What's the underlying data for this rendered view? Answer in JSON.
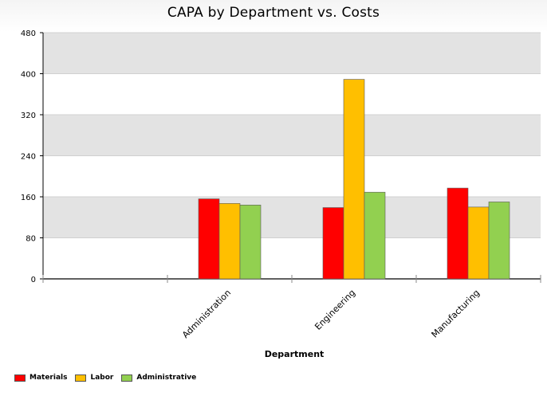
{
  "chart_data": {
    "type": "bar",
    "title": "CAPA by Department vs. Costs",
    "xlabel": "Department",
    "ylabel": "",
    "categories": [
      "",
      "Administration",
      "Engineering",
      "Manufacturing"
    ],
    "series": [
      {
        "name": "Materials",
        "color": "#ff0000",
        "values": [
          null,
          156,
          139,
          177
        ]
      },
      {
        "name": "Labor",
        "color": "#ffbf00",
        "values": [
          null,
          147,
          389,
          140
        ]
      },
      {
        "name": "Administrative",
        "color": "#92d050",
        "values": [
          null,
          144,
          169,
          150
        ]
      }
    ],
    "ylim": [
      0,
      480
    ],
    "yticks": [
      0,
      80,
      160,
      240,
      320,
      400,
      480
    ],
    "grid": true,
    "band_color": "#e3e3e3",
    "legend": "bottom-left"
  }
}
